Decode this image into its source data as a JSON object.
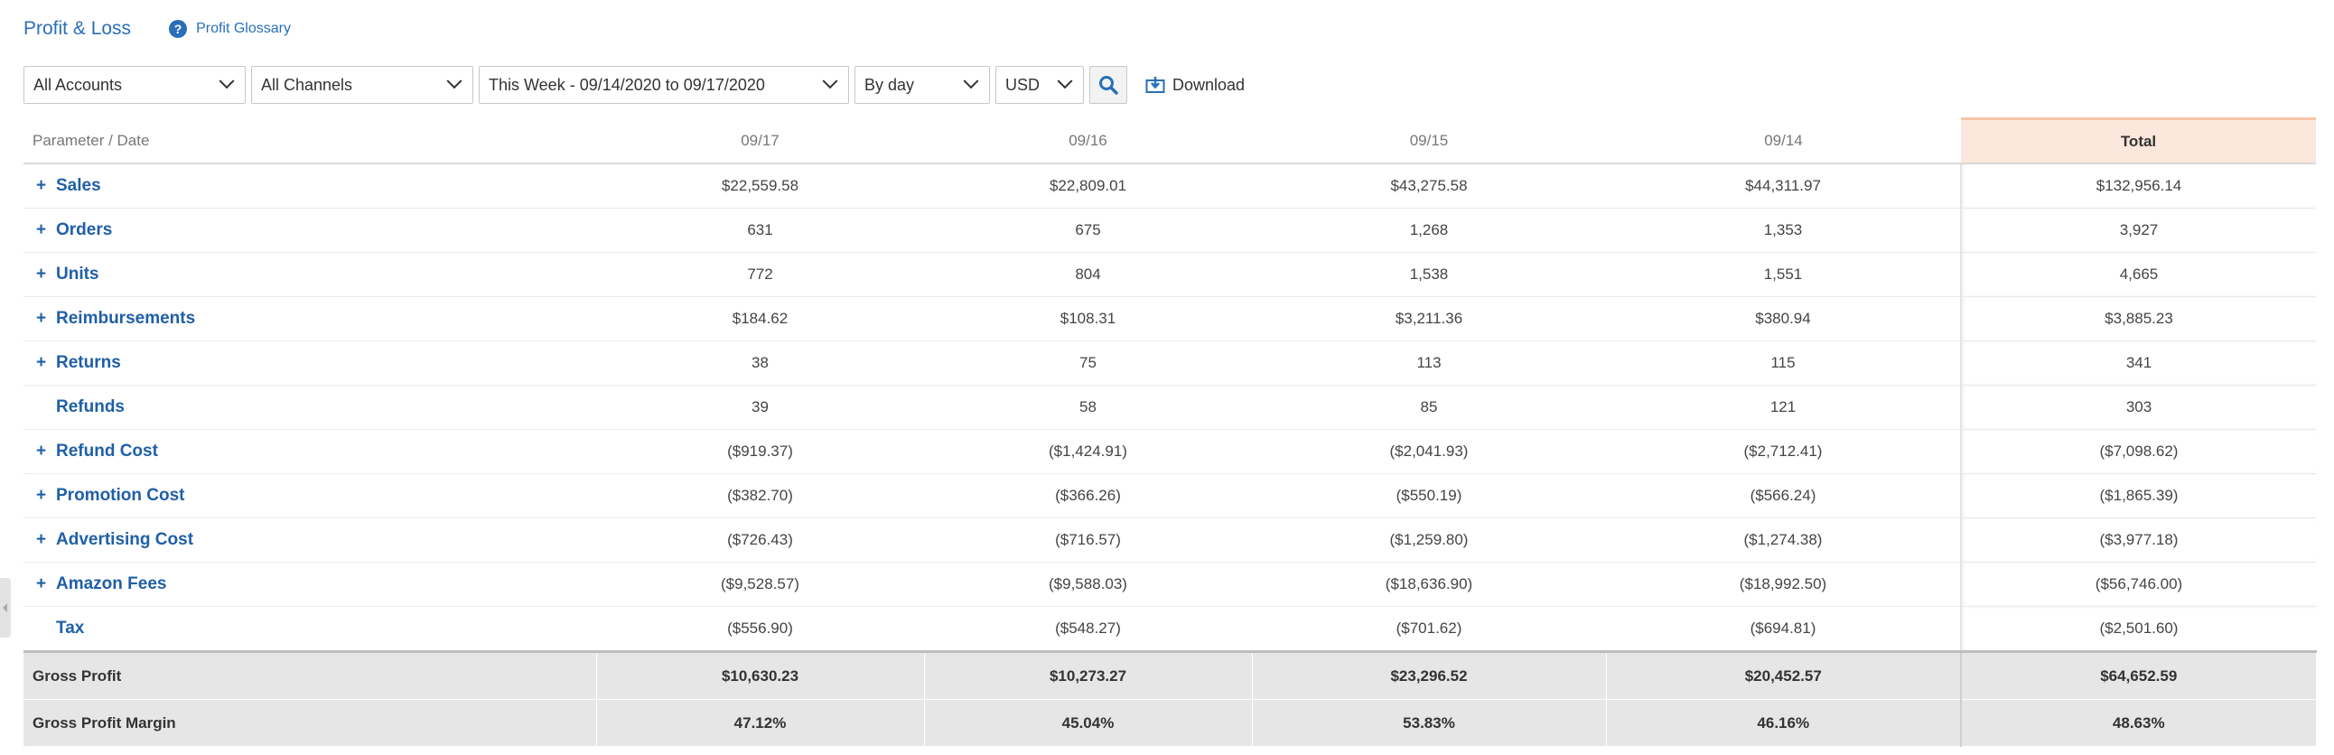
{
  "header": {
    "title": "Profit & Loss",
    "glossary_label": "Profit Glossary",
    "glossary_icon": "help-circle-icon"
  },
  "filters": {
    "accounts": "All Accounts",
    "channels": "All Channels",
    "date_range": "This Week - 09/14/2020 to 09/17/2020",
    "granularity": "By day",
    "currency": "USD",
    "search_icon": "search-icon",
    "download_label": "Download"
  },
  "table": {
    "header": {
      "param": "Parameter / Date",
      "d1": "09/17",
      "d2": "09/16",
      "d3": "09/15",
      "d4": "09/14",
      "total": "Total"
    },
    "rows": [
      {
        "label": "Sales",
        "expandable": true,
        "v1": "$22,559.58",
        "v2": "$22,809.01",
        "v3": "$43,275.58",
        "v4": "$44,311.97",
        "total": "$132,956.14"
      },
      {
        "label": "Orders",
        "expandable": true,
        "v1": "631",
        "v2": "675",
        "v3": "1,268",
        "v4": "1,353",
        "total": "3,927"
      },
      {
        "label": "Units",
        "expandable": true,
        "v1": "772",
        "v2": "804",
        "v3": "1,538",
        "v4": "1,551",
        "total": "4,665"
      },
      {
        "label": "Reimbursements",
        "expandable": true,
        "v1": "$184.62",
        "v2": "$108.31",
        "v3": "$3,211.36",
        "v4": "$380.94",
        "total": "$3,885.23"
      },
      {
        "label": "Returns",
        "expandable": true,
        "v1": "38",
        "v2": "75",
        "v3": "113",
        "v4": "115",
        "total": "341"
      },
      {
        "label": "Refunds",
        "expandable": false,
        "v1": "39",
        "v2": "58",
        "v3": "85",
        "v4": "121",
        "total": "303"
      },
      {
        "label": "Refund Cost",
        "expandable": true,
        "v1": "($919.37)",
        "v2": "($1,424.91)",
        "v3": "($2,041.93)",
        "v4": "($2,712.41)",
        "total": "($7,098.62)"
      },
      {
        "label": "Promotion Cost",
        "expandable": true,
        "v1": "($382.70)",
        "v2": "($366.26)",
        "v3": "($550.19)",
        "v4": "($566.24)",
        "total": "($1,865.39)"
      },
      {
        "label": "Advertising Cost",
        "expandable": true,
        "v1": "($726.43)",
        "v2": "($716.57)",
        "v3": "($1,259.80)",
        "v4": "($1,274.38)",
        "total": "($3,977.18)"
      },
      {
        "label": "Amazon Fees",
        "expandable": true,
        "v1": "($9,528.57)",
        "v2": "($9,588.03)",
        "v3": "($18,636.90)",
        "v4": "($18,992.50)",
        "total": "($56,746.00)"
      },
      {
        "label": "Tax",
        "expandable": false,
        "v1": "($556.90)",
        "v2": "($548.27)",
        "v3": "($701.62)",
        "v4": "($694.81)",
        "total": "($2,501.60)"
      }
    ],
    "footer": [
      {
        "label": "Gross Profit",
        "v1": "$10,630.23",
        "v2": "$10,273.27",
        "v3": "$23,296.52",
        "v4": "$20,452.57",
        "total": "$64,652.59"
      },
      {
        "label": "Gross Profit Margin",
        "v1": "47.12%",
        "v2": "45.04%",
        "v3": "53.83%",
        "v4": "46.16%",
        "total": "48.63%"
      }
    ]
  }
}
